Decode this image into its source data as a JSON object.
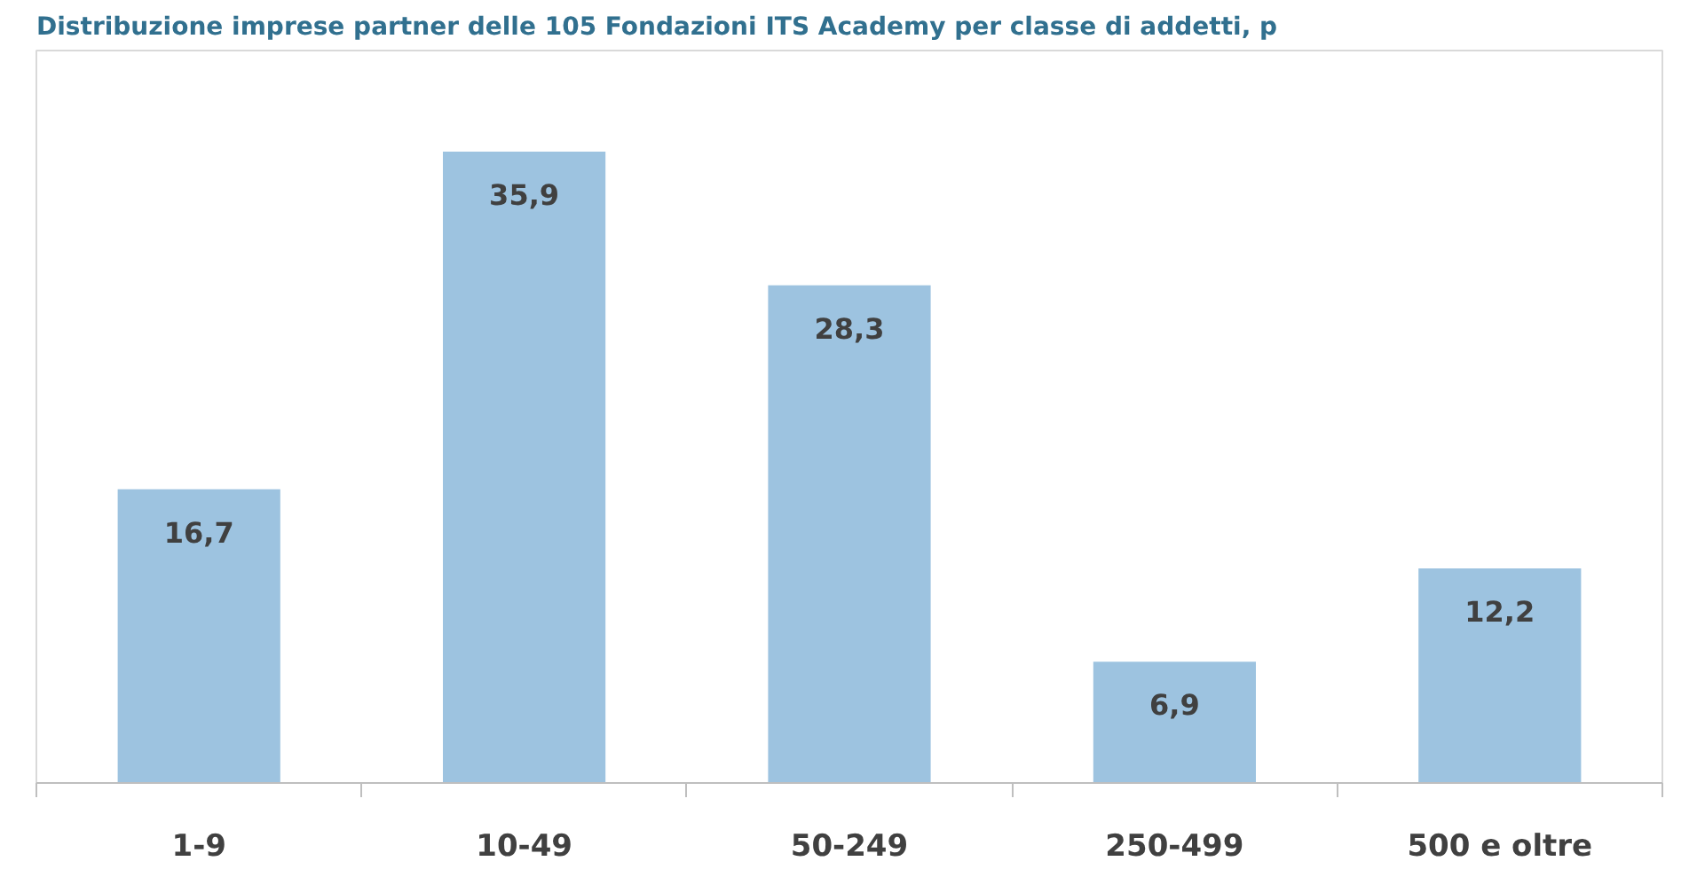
{
  "chart_data": {
    "type": "bar",
    "title": "Distribuzione imprese partner delle 105 Fondazioni ITS Academy per classe di addetti, p",
    "categories": [
      "1-9",
      "10-49",
      "50-249",
      "250-499",
      "500 e oltre"
    ],
    "values": [
      16.7,
      35.9,
      28.3,
      6.9,
      12.2
    ],
    "color": "#9dc3e0",
    "value_labels": [
      "16,7",
      "35,9",
      "28,3",
      "6,9",
      "12,2"
    ],
    "grid": false
  }
}
